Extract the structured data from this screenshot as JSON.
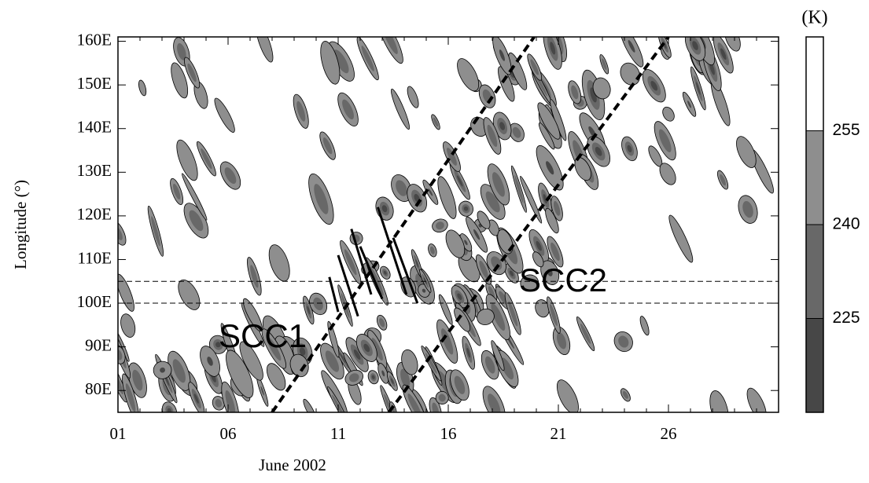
{
  "chart_data": {
    "type": "hovmoller",
    "xlabel": "June 2002",
    "ylabel": "Longitude (°)",
    "xlim": [
      1,
      31
    ],
    "ylim": [
      75,
      161
    ],
    "xticks": [
      {
        "value": 1,
        "label": "01"
      },
      {
        "value": 6,
        "label": "06"
      },
      {
        "value": 11,
        "label": "11"
      },
      {
        "value": 16,
        "label": "16"
      },
      {
        "value": 21,
        "label": "21"
      },
      {
        "value": 26,
        "label": "26"
      }
    ],
    "yticks": [
      {
        "value": 80,
        "label": "80E"
      },
      {
        "value": 90,
        "label": "90E"
      },
      {
        "value": 100,
        "label": "100E"
      },
      {
        "value": 110,
        "label": "110E"
      },
      {
        "value": 120,
        "label": "120E"
      },
      {
        "value": 130,
        "label": "130E"
      },
      {
        "value": 140,
        "label": "140E"
      },
      {
        "value": 150,
        "label": "150E"
      },
      {
        "value": 160,
        "label": "160E"
      }
    ],
    "colorbar": {
      "label": "(K)",
      "lim": [
        210,
        270
      ],
      "ticks": [
        225,
        240,
        255
      ],
      "levels": [
        {
          "range": [
            210,
            225
          ],
          "color": "#474747"
        },
        {
          "range": [
            225,
            240
          ],
          "color": "#686868"
        },
        {
          "range": [
            240,
            255
          ],
          "color": "#8e8e8e"
        },
        {
          "range": [
            255,
            270
          ],
          "color": "#ffffff"
        }
      ]
    },
    "hlines": [
      100,
      105
    ],
    "lines": [
      {
        "x": [
          8,
          19.9
        ],
        "y": [
          75,
          161
        ],
        "style": "dashed"
      },
      {
        "x": [
          13.3,
          26
        ],
        "y": [
          75,
          161
        ],
        "style": "dashed"
      },
      {
        "x": [
          10.6,
          11.0
        ],
        "y": [
          106,
          98
        ],
        "style": "solid"
      },
      {
        "x": [
          11.0,
          11.9
        ],
        "y": [
          111,
          97
        ],
        "style": "solid"
      },
      {
        "x": [
          11.6,
          12.5
        ],
        "y": [
          117,
          102
        ],
        "style": "solid"
      },
      {
        "x": [
          12.0,
          13.0
        ],
        "y": [
          113,
          101
        ],
        "style": "solid"
      },
      {
        "x": [
          12.8,
          14.1
        ],
        "y": [
          122,
          102
        ],
        "style": "solid"
      },
      {
        "x": [
          13.5,
          14.6
        ],
        "y": [
          115,
          100
        ],
        "style": "solid"
      }
    ],
    "annotations": [
      "SCC1",
      "SCC2"
    ]
  }
}
